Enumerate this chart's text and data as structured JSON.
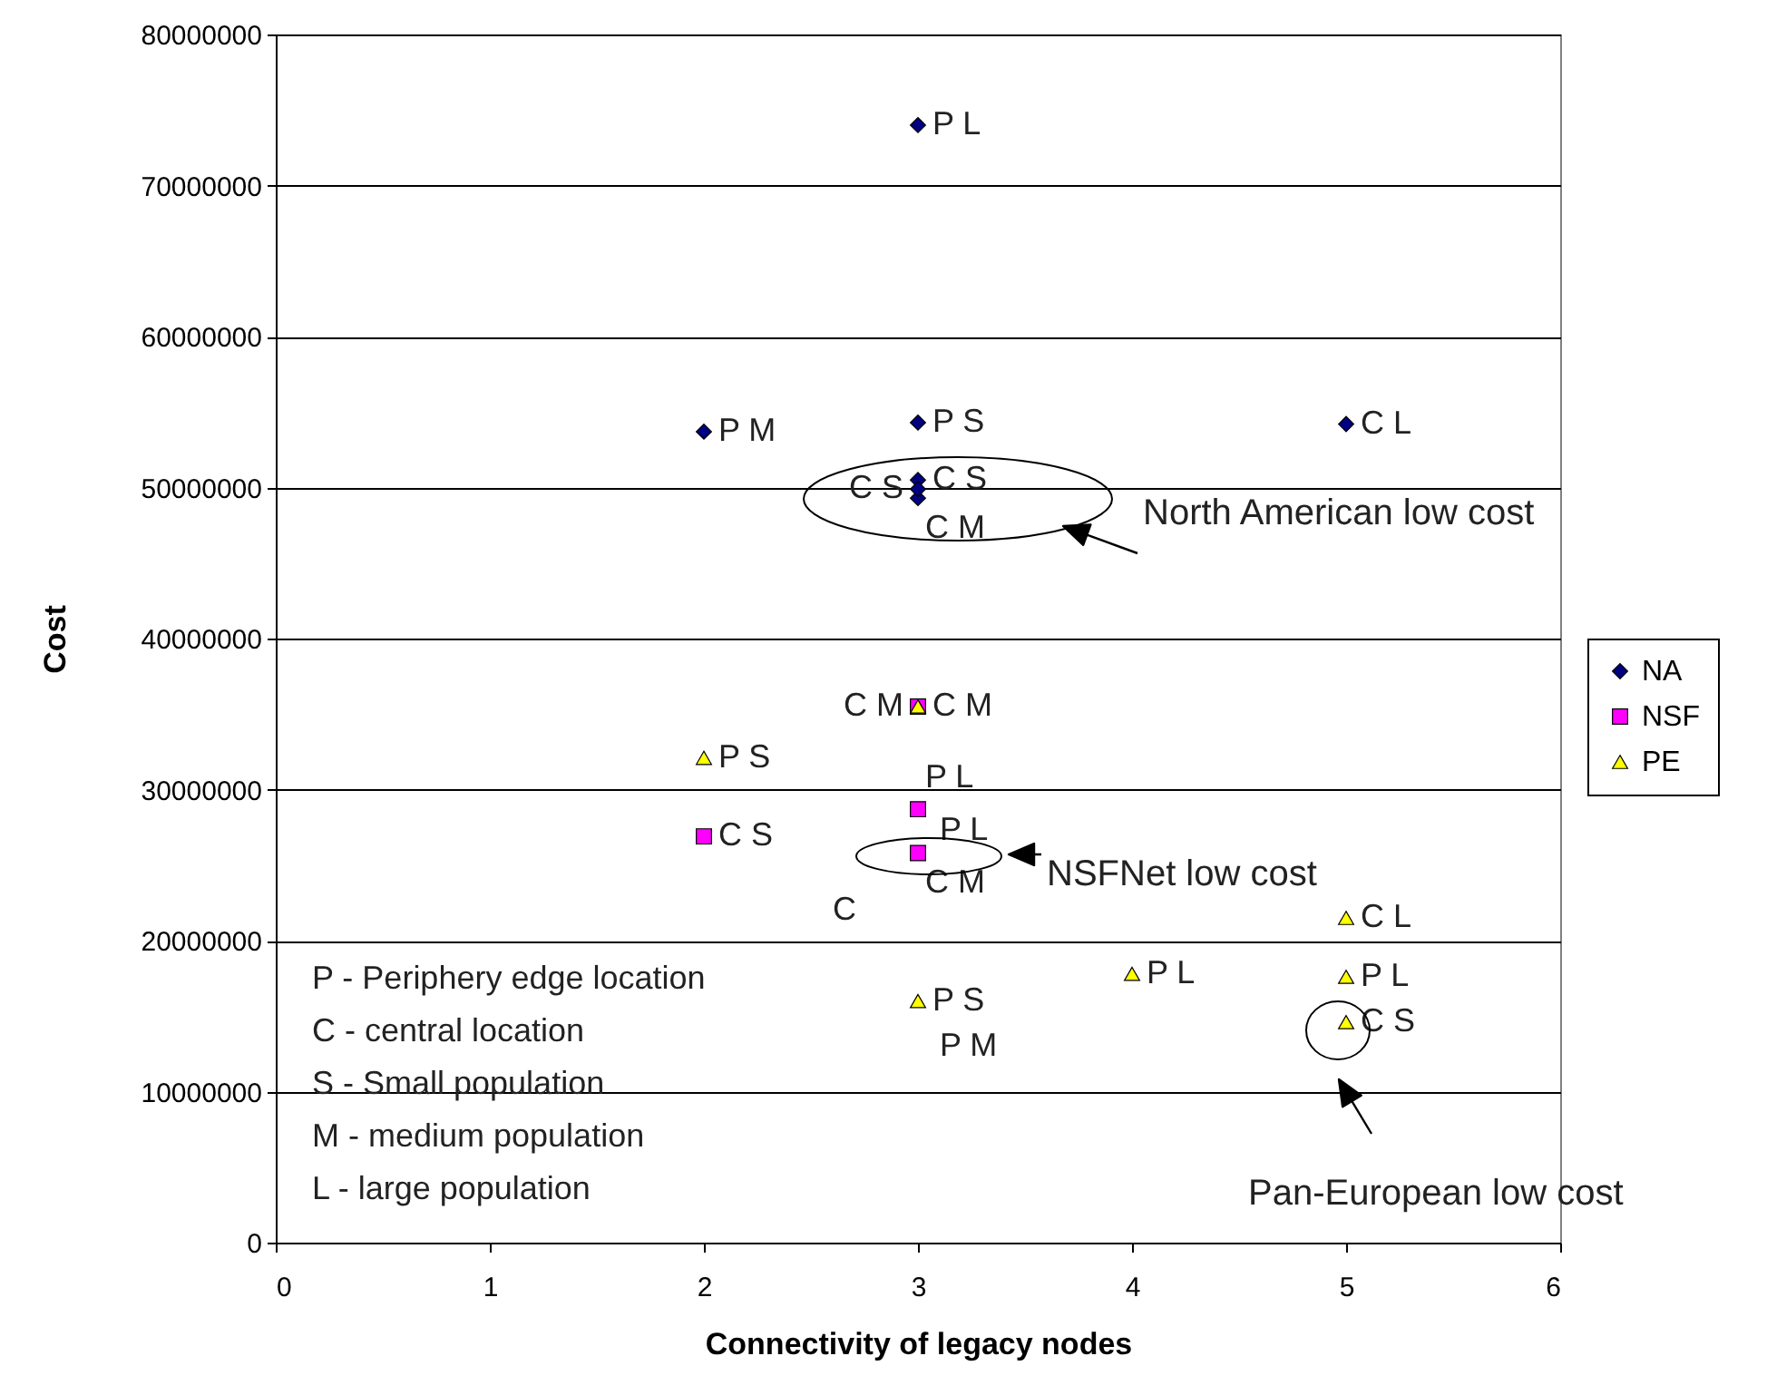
{
  "chart_data": {
    "type": "scatter",
    "xlabel": "Connectivity of legacy nodes",
    "ylabel": "Cost",
    "xlim": [
      0,
      6
    ],
    "xticks": [
      0,
      1,
      2,
      3,
      4,
      5,
      6
    ],
    "ylim": [
      0,
      80000000
    ],
    "yticks": [
      0,
      10000000,
      20000000,
      30000000,
      40000000,
      50000000,
      60000000,
      70000000,
      80000000
    ],
    "grid": "y",
    "legend": "right",
    "series": [
      {
        "name": "NA",
        "color": "#000080",
        "marker": "diamond",
        "x": [
          3,
          2,
          3,
          5,
          3,
          3,
          3
        ],
        "values": [
          74000000,
          53700000,
          54300000,
          54200000,
          50500000,
          49300000,
          49900000
        ],
        "value_labels": [
          "P L",
          "P M",
          "P S",
          "C L",
          "C S",
          "C M",
          "C S"
        ]
      },
      {
        "name": "NSF",
        "color": "#ff00ff",
        "marker": "square",
        "x": [
          2,
          3,
          3,
          3
        ],
        "values": [
          26900000,
          35500000,
          28700000,
          25800000
        ],
        "value_labels": [
          "C S",
          "C M",
          "P L",
          "C M"
        ]
      },
      {
        "name": "PE",
        "color": "#ffff00",
        "marker": "triangle",
        "x": [
          2,
          3,
          3,
          4,
          5,
          5,
          5
        ],
        "values": [
          32100000,
          35500000,
          16000000,
          17800000,
          21500000,
          17600000,
          14600000
        ],
        "value_labels": [
          "P S",
          "C M",
          "P S",
          "P L",
          "C L",
          "P L",
          "C S"
        ]
      }
    ],
    "annotations": [
      "North American low cost",
      "NSFNet low cost",
      "Pan-European low cost",
      "P L",
      "C",
      "P M",
      "P - Periphery edge location",
      "C - central location",
      "S - Small population",
      "M - medium population",
      "L - large population"
    ]
  }
}
